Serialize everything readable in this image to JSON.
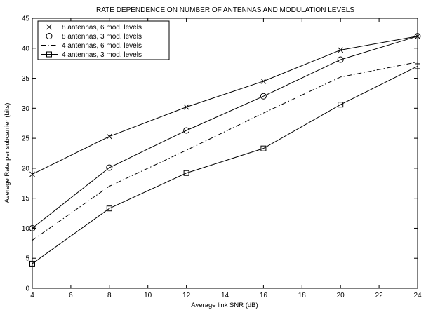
{
  "chart_data": {
    "type": "line",
    "title": "RATE DEPENDENCE ON NUMBER OF ANTENNAS AND MODULATION LEVELS",
    "xlabel": "Average link SNR (dB)",
    "ylabel": "Average Rate per subcarrier (bits)",
    "xlim": [
      4,
      24
    ],
    "ylim": [
      0,
      45
    ],
    "xticks": [
      4,
      6,
      8,
      10,
      12,
      14,
      16,
      18,
      20,
      22,
      24
    ],
    "yticks": [
      0,
      5,
      10,
      15,
      20,
      25,
      30,
      35,
      40,
      45
    ],
    "grid": false,
    "legend_position": "top-left",
    "series": [
      {
        "name": "8 antennas, 6 mod. levels",
        "style": "solid",
        "marker": "x",
        "x": [
          4,
          8,
          12,
          16,
          20,
          24
        ],
        "y": [
          19,
          25.3,
          30.2,
          34.5,
          39.7,
          42
        ]
      },
      {
        "name": "8 antennas, 3 mod. levels",
        "style": "solid",
        "marker": "o",
        "x": [
          4,
          8,
          12,
          16,
          20,
          24
        ],
        "y": [
          10,
          20.1,
          26.3,
          32,
          38.1,
          42
        ]
      },
      {
        "name": "4 antennas, 6 mod. levels",
        "style": "dashdot",
        "marker": "none",
        "x": [
          4,
          8,
          12,
          16,
          20,
          24
        ],
        "y": [
          8,
          17,
          23,
          29.2,
          35.2,
          37.7
        ]
      },
      {
        "name": "4 antennas, 3 mod. levels",
        "style": "solid",
        "marker": "s",
        "x": [
          4,
          8,
          12,
          16,
          20,
          24
        ],
        "y": [
          4.1,
          13.3,
          19.2,
          23.3,
          30.6,
          37
        ]
      }
    ]
  }
}
